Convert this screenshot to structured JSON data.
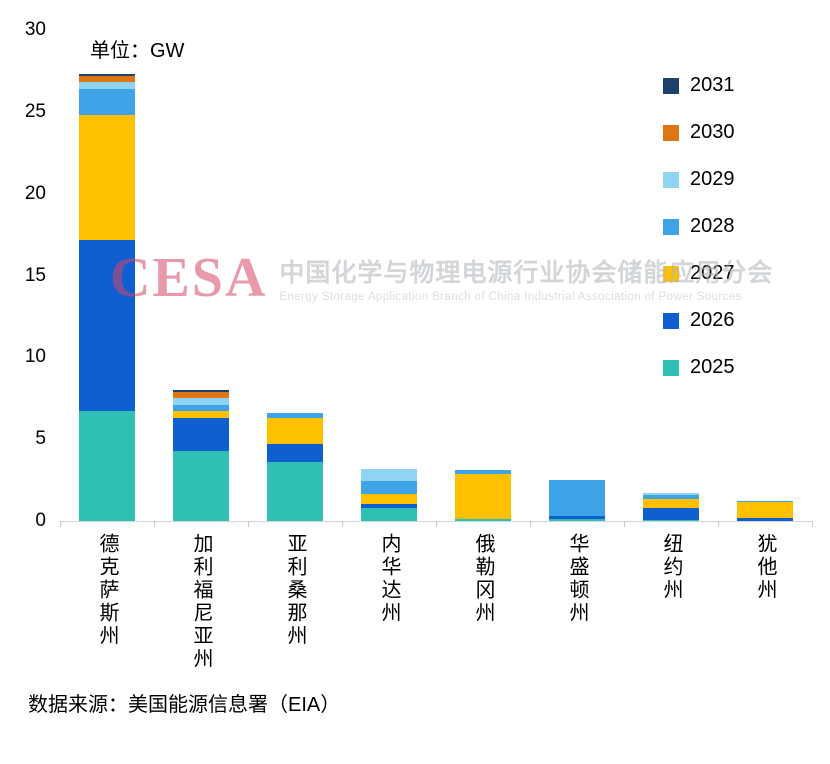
{
  "unit_label": "单位：GW",
  "source": "数据来源：美国能源信息署（EIA）",
  "watermark": {
    "logo": "CESA",
    "cn": "中国化学与物理电源行业协会储能应用分会",
    "en": "Energy Storage Application Branch of China Industrial Association of Power Sources"
  },
  "chart_data": {
    "type": "bar",
    "stacked": true,
    "title": "",
    "unit": "GW",
    "categories": [
      "德克萨斯州",
      "加利福尼亚州",
      "亚利桑那州",
      "内华达州",
      "俄勒冈州",
      "华盛顿州",
      "纽约州",
      "犹他州"
    ],
    "series": [
      {
        "name": "2025",
        "color": "#30BFB3",
        "values": [
          6.7,
          4.3,
          3.6,
          0.8,
          0.1,
          0.1,
          0.05,
          0
        ]
      },
      {
        "name": "2026",
        "color": "#0F5FD0",
        "values": [
          10.5,
          2.0,
          1.1,
          0.25,
          0,
          0.2,
          0.75,
          0.2
        ]
      },
      {
        "name": "2027",
        "color": "#FFC000",
        "values": [
          7.6,
          0.4,
          1.6,
          0.6,
          2.8,
          0,
          0.55,
          0.95
        ]
      },
      {
        "name": "2028",
        "color": "#3FA3E8",
        "values": [
          1.6,
          0.4,
          0.3,
          0.8,
          0.2,
          2.2,
          0.25,
          0.05
        ]
      },
      {
        "name": "2029",
        "color": "#8FD4F2",
        "values": [
          0.4,
          0.4,
          0,
          0.75,
          0,
          0,
          0.1,
          0
        ]
      },
      {
        "name": "2030",
        "color": "#DD7613",
        "values": [
          0.4,
          0.4,
          0,
          0,
          0,
          0,
          0,
          0
        ]
      },
      {
        "name": "2031",
        "color": "#1F4068",
        "values": [
          0.1,
          0.1,
          0,
          0,
          0,
          0,
          0,
          0
        ]
      }
    ],
    "ylim": [
      0,
      30
    ],
    "yticks": [
      0,
      5,
      10,
      15,
      20,
      25,
      30
    ],
    "grid": false,
    "legend_position": "top-right",
    "legend_order": [
      "2031",
      "2030",
      "2029",
      "2028",
      "2027",
      "2026",
      "2025"
    ]
  }
}
